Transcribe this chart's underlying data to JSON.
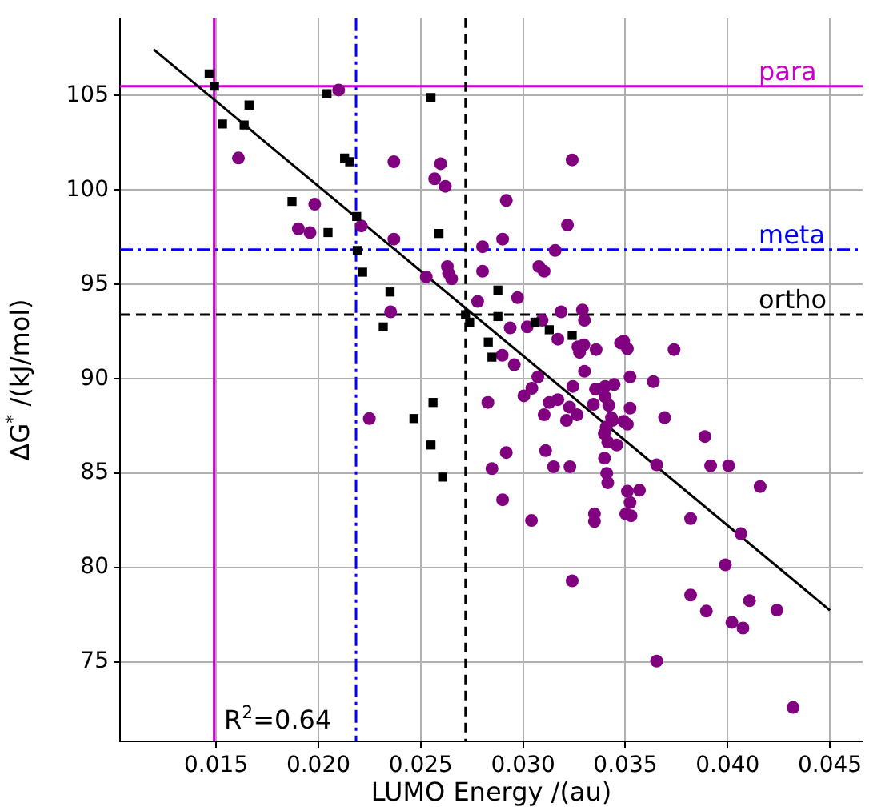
{
  "chart_data": {
    "type": "scatter",
    "xlabel": "LUMO Energy /(au)",
    "ylabel": "ΔG$^{*}$ /(kJ/mol)",
    "xlim": [
      0.0103,
      0.0466
    ],
    "ylim": [
      70.8,
      109.1
    ],
    "xticks": [
      0.015,
      {
        "value": 0.02,
        "label": "0.020"
      },
      0.025,
      {
        "value": 0.03,
        "label": "0.030"
      },
      0.035,
      {
        "value": 0.04,
        "label": "0.040"
      },
      0.045
    ],
    "yticks": [
      75,
      80,
      85,
      90,
      95,
      100,
      105
    ],
    "grid": true,
    "legend": false,
    "series": [
      {
        "type": "scatter",
        "marker": "square",
        "color": "#000000",
        "x": [
          0.01466,
          0.01492,
          0.01531,
          0.01661,
          0.01637,
          0.02042,
          0.02128,
          0.02153,
          0.01871,
          0.02187,
          0.02047,
          0.0219,
          0.02216,
          0.02317,
          0.0255,
          0.02589,
          0.0235,
          0.02719,
          0.02739,
          0.02877,
          0.02877,
          0.0283,
          0.02848,
          0.03058,
          0.03128,
          0.0324,
          0.0256,
          0.02467,
          0.0255,
          0.02607
        ],
        "values": [
          106.15,
          105.5,
          103.5,
          104.5,
          103.45,
          105.1,
          101.7,
          101.5,
          99.4,
          98.6,
          97.75,
          96.8,
          95.65,
          92.75,
          104.9,
          97.7,
          94.6,
          93.4,
          93.0,
          94.7,
          93.3,
          91.95,
          91.15,
          93.0,
          92.6,
          92.3,
          88.75,
          87.9,
          86.5,
          84.8
        ]
      },
      {
        "type": "scatter",
        "marker": "circle",
        "color": "#800080",
        "x": [
          0.02099,
          0.01609,
          0.01982,
          0.01902,
          0.01959,
          0.0221,
          0.02249,
          0.02369,
          0.02597,
          0.02568,
          0.0262,
          0.0324,
          0.02918,
          0.03217,
          0.02369,
          0.029,
          0.02802,
          0.03157,
          0.0263,
          0.02636,
          0.02802,
          0.03077,
          0.03103,
          0.02527,
          0.02651,
          0.02778,
          0.02973,
          0.02353,
          0.03186,
          0.0329,
          0.033,
          0.03093,
          0.02937,
          0.0302,
          0.0317,
          0.03268,
          0.03297,
          0.03276,
          0.03357,
          0.02898,
          0.02957,
          0.033,
          0.03072,
          0.03043,
          0.03004,
          0.03128,
          0.0317,
          0.03243,
          0.03354,
          0.03401,
          0.03445,
          0.03103,
          0.03212,
          0.03227,
          0.02828,
          0.03401,
          0.03419,
          0.03344,
          0.03432,
          0.03406,
          0.03476,
          0.03492,
          0.0351,
          0.03738,
          0.03523,
          0.03637,
          0.03523,
          0.03692,
          0.03437,
          0.03492,
          0.0351,
          0.03414,
          0.03458,
          0.03398,
          0.03409,
          0.03414,
          0.0351,
          0.03569,
          0.03523,
          0.03502,
          0.03528,
          0.03653,
          0.03889,
          0.03917,
          0.04005,
          0.04159,
          0.03819,
          0.04065,
          0.03989,
          0.03819,
          0.04107,
          0.03896,
          0.04241,
          0.04021,
          0.04075,
          0.03653,
          0.0432,
          0.02848,
          0.02918,
          0.029,
          0.03041,
          0.0311,
          0.03149,
          0.03229,
          0.03349,
          0.03349,
          0.0324,
          0.03397,
          0.03264
        ],
        "values": [
          105.3,
          101.7,
          99.25,
          97.95,
          97.75,
          98.1,
          87.9,
          101.5,
          101.4,
          100.6,
          100.2,
          101.6,
          99.45,
          98.15,
          97.4,
          97.4,
          97.0,
          96.8,
          95.95,
          95.6,
          95.7,
          95.95,
          95.7,
          95.4,
          95.3,
          94.1,
          94.3,
          93.55,
          93.55,
          93.65,
          93.1,
          93.1,
          92.7,
          92.75,
          92.1,
          91.7,
          91.8,
          91.4,
          91.55,
          91.25,
          90.75,
          90.4,
          90.1,
          89.5,
          89.1,
          88.75,
          88.9,
          89.6,
          89.45,
          89.6,
          89.7,
          88.1,
          87.8,
          88.5,
          88.75,
          89.05,
          88.6,
          88.65,
          87.95,
          87.45,
          91.9,
          92.0,
          91.6,
          91.55,
          90.1,
          89.85,
          88.45,
          87.95,
          87.8,
          87.75,
          87.6,
          86.65,
          86.5,
          85.8,
          85.0,
          84.5,
          84.05,
          84.1,
          83.45,
          82.85,
          82.75,
          85.45,
          86.95,
          85.4,
          85.4,
          84.3,
          82.6,
          81.8,
          80.15,
          78.55,
          78.25,
          77.7,
          77.75,
          77.1,
          76.8,
          75.05,
          72.6,
          85.25,
          86.1,
          83.6,
          82.5,
          86.2,
          85.35,
          85.35,
          82.85,
          82.45,
          79.3,
          87.1,
          88.1
        ]
      },
      {
        "type": "line",
        "marker": "none",
        "color": "#000000",
        "x": [
          0.01194,
          0.045
        ],
        "values": [
          107.45,
          77.74
        ]
      }
    ],
    "ref_lines": [
      {
        "axis": "y",
        "value": 105.5,
        "label": "para",
        "color": "#cc00cc",
        "line_style": "solid"
      },
      {
        "axis": "y",
        "value": 96.85,
        "label": "meta",
        "color": "#0000ff",
        "line_style": "dashdot"
      },
      {
        "axis": "y",
        "value": 93.4,
        "label": "ortho",
        "color": "#000000",
        "line_style": "dashed"
      },
      {
        "axis": "x",
        "value": 0.0149,
        "color": "#cc00cc",
        "line_style": "solid"
      },
      {
        "axis": "x",
        "value": 0.02184,
        "color": "#0000ff",
        "line_style": "dashdot"
      },
      {
        "axis": "x",
        "value": 0.02719,
        "color": "#000000",
        "line_style": "dashed"
      }
    ],
    "annotations": [
      "R$^{2}$=0.64"
    ]
  }
}
